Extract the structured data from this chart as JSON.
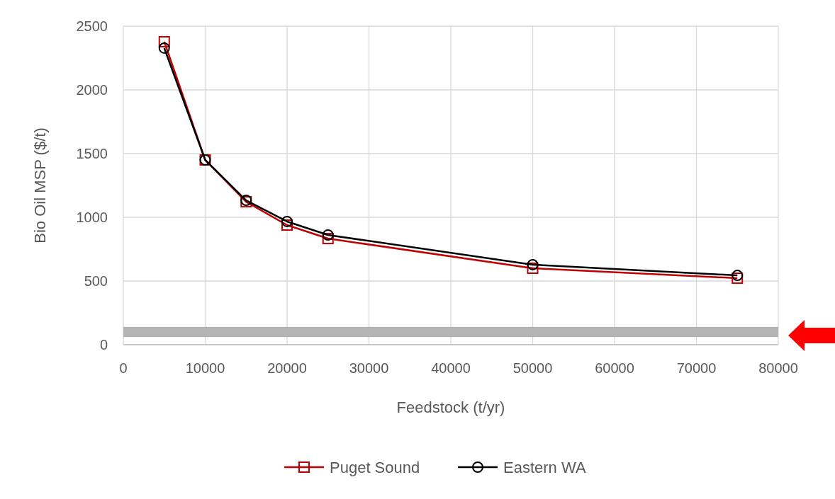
{
  "chart_data": {
    "type": "line",
    "xlabel": "Feedstock (t/yr)",
    "ylabel": "Bio Oil MSP ($/t)",
    "x": [
      5000,
      10000,
      15000,
      20000,
      25000,
      50000,
      75000
    ],
    "series": [
      {
        "name": "Puget Sound",
        "color": "#c00000",
        "marker": "square",
        "values": [
          2378,
          1450,
          1122,
          939,
          833,
          600,
          522
        ]
      },
      {
        "name": "Eastern WA",
        "color": "#000000",
        "marker": "circle",
        "values": [
          2328,
          1450,
          1133,
          967,
          861,
          628,
          544
        ]
      }
    ],
    "xlim": [
      0,
      80000
    ],
    "xticks": [
      0,
      10000,
      20000,
      30000,
      40000,
      50000,
      60000,
      70000,
      80000
    ],
    "ylim": [
      0,
      2500
    ],
    "yticks": [
      0,
      500,
      1000,
      1500,
      2000,
      2500
    ],
    "bands": [
      {
        "axis": "y",
        "from": 60,
        "to": 140,
        "color": "#b4b4b4"
      }
    ],
    "grid": true,
    "legend": "bottom",
    "line_style": "solid"
  }
}
